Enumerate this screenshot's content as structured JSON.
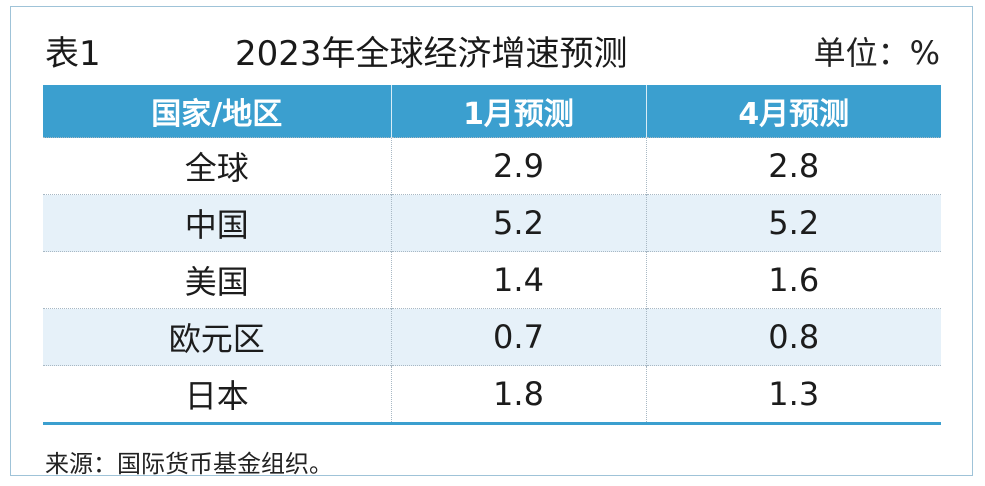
{
  "title": {
    "number": "表1",
    "text": "2023年全球经济增速预测",
    "unit": "单位：%"
  },
  "table": {
    "headers": [
      "国家/地区",
      "1月预测",
      "4月预测"
    ],
    "rows": [
      {
        "region": "全球",
        "jan": "2.9",
        "apr": "2.8"
      },
      {
        "region": "中国",
        "jan": "5.2",
        "apr": "5.2"
      },
      {
        "region": "美国",
        "jan": "1.4",
        "apr": "1.6"
      },
      {
        "region": "欧元区",
        "jan": "0.7",
        "apr": "0.8"
      },
      {
        "region": "日本",
        "jan": "1.8",
        "apr": "1.3"
      }
    ]
  },
  "source": "来源：国际货币基金组织。",
  "colors": {
    "header_bg": "#3b9fcf",
    "stripe_bg": "#e6f1f9",
    "frame": "#9fc3d8"
  }
}
